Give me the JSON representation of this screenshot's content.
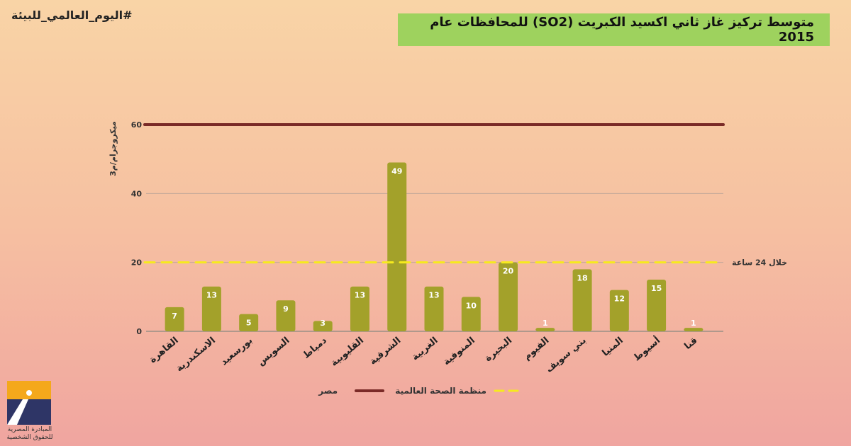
{
  "hashtag": "#اليوم_العالمي_للبيئة",
  "title": "متوسط تركيز غاز ثاني اكسيد الكبريت (SO2) للمحافظات عام 2015",
  "logo_caption": "المبادرة المصرية للحقوق الشخصية",
  "chart_data": {
    "type": "bar",
    "ylabel": "ميكروجرام/م3",
    "ylim": [
      0,
      60
    ],
    "yticks": [
      0,
      20,
      40,
      60
    ],
    "categories": [
      "القاهرة",
      "الاسكندرية",
      "بورسعيد",
      "السويس",
      "دمياط",
      "القليوبية",
      "الشرقية",
      "الغربية",
      "المنوفية",
      "البحيرة",
      "الفيوم",
      "بني سويف",
      "المنيا",
      "أسيوط",
      "قنا"
    ],
    "values": [
      7,
      13,
      5,
      9,
      3,
      13,
      49,
      13,
      10,
      20,
      1,
      18,
      12,
      15,
      1
    ],
    "bar_color": "#a3a12a",
    "reference_lines": [
      {
        "name": "مصر",
        "value": 60,
        "color": "#7a2a27",
        "style": "solid"
      },
      {
        "name": "منظمة الصحة العالمية",
        "value": 20,
        "color": "#f6ea1e",
        "style": "dashed",
        "annotation": "خلال 24 ساعة"
      }
    ],
    "legend_position": "bottom",
    "grid": true
  }
}
